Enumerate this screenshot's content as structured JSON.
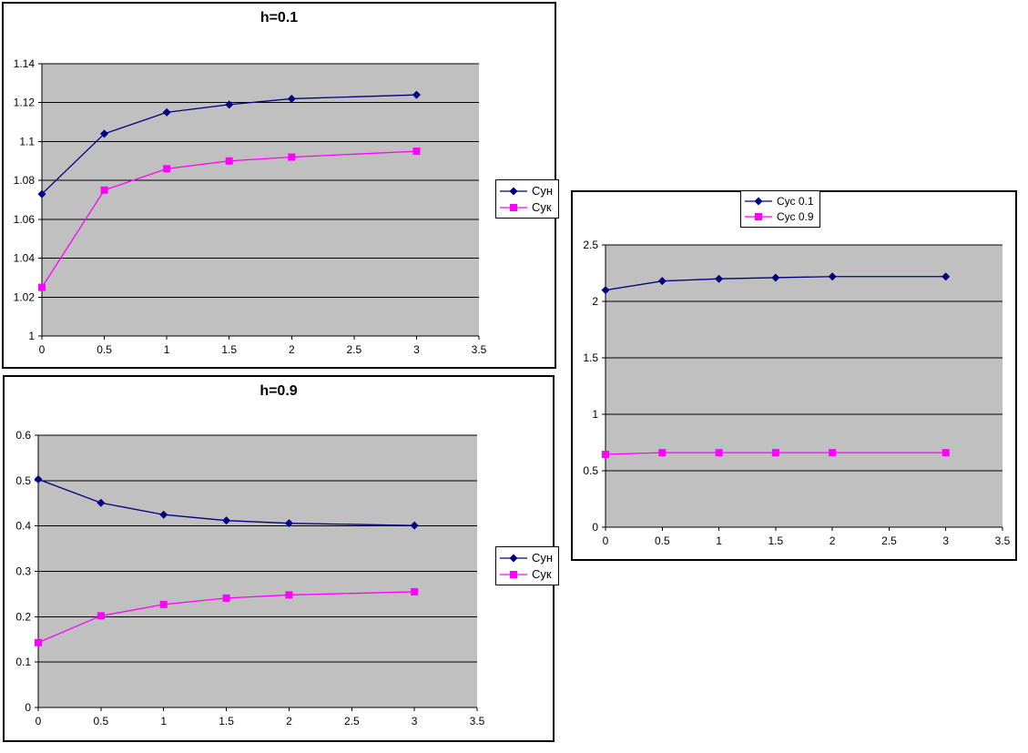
{
  "page": {
    "background_color": "#FFFFFF",
    "plot_background_color": "#C0C0C0",
    "gridline_color": "#000000",
    "text_color": "#000000"
  },
  "chart_data": [
    {
      "key": "h01",
      "type": "line",
      "title": "h=0.1",
      "x": [
        0,
        0.5,
        1,
        1.5,
        2,
        3
      ],
      "series": [
        {
          "name": "Сун",
          "color": "#000080",
          "marker": "diamond",
          "values": [
            1.073,
            1.104,
            1.115,
            1.119,
            1.122,
            1.124
          ]
        },
        {
          "name": "Сук",
          "color": "#FF00FF",
          "marker": "square",
          "values": [
            1.025,
            1.075,
            1.086,
            1.09,
            1.092,
            1.095
          ]
        }
      ],
      "xlim": [
        0,
        3.5
      ],
      "ylim": [
        1,
        1.14
      ],
      "xtick_values": [
        0,
        0.5,
        1,
        1.5,
        2,
        2.5,
        3,
        3.5
      ],
      "xtick_labels": [
        "0",
        "0.5",
        "1",
        "1.5",
        "2",
        "2.5",
        "3",
        "3.5"
      ],
      "ytick_values": [
        1,
        1.02,
        1.04,
        1.06,
        1.08,
        1.1,
        1.12,
        1.14
      ],
      "ytick_labels": [
        "1",
        "1.02",
        "1.04",
        "1.06",
        "1.08",
        "1.1",
        "1.12",
        "1.14"
      ],
      "grid": "horizontal",
      "legend_position": "right",
      "plot_bg": "#C0C0C0"
    },
    {
      "key": "h09",
      "type": "line",
      "title": "h=0.9",
      "x": [
        0,
        0.5,
        1,
        1.5,
        2,
        3
      ],
      "series": [
        {
          "name": "Сун",
          "color": "#000080",
          "marker": "diamond",
          "values": [
            0.503,
            0.451,
            0.425,
            0.412,
            0.406,
            0.401
          ]
        },
        {
          "name": "Сук",
          "color": "#FF00FF",
          "marker": "square",
          "values": [
            0.143,
            0.202,
            0.227,
            0.241,
            0.248,
            0.255
          ]
        }
      ],
      "xlim": [
        0,
        3.5
      ],
      "ylim": [
        0,
        0.6
      ],
      "xtick_values": [
        0,
        0.5,
        1,
        1.5,
        2,
        2.5,
        3,
        3.5
      ],
      "xtick_labels": [
        "0",
        "0.5",
        "1",
        "1.5",
        "2",
        "2.5",
        "3",
        "3.5"
      ],
      "ytick_values": [
        0,
        0.1,
        0.2,
        0.3,
        0.4,
        0.5,
        0.6
      ],
      "ytick_labels": [
        "0",
        "0.1",
        "0.2",
        "0.3",
        "0.4",
        "0.5",
        "0.6"
      ],
      "grid": "horizontal",
      "legend_position": "right",
      "plot_bg": "#C0C0C0"
    },
    {
      "key": "sus",
      "type": "line",
      "title": "",
      "x": [
        0,
        0.5,
        1,
        1.5,
        2,
        3
      ],
      "series": [
        {
          "name": "Сус 0.1",
          "color": "#000080",
          "marker": "diamond",
          "values": [
            2.1,
            2.18,
            2.2,
            2.21,
            2.22,
            2.22
          ]
        },
        {
          "name": "Сус 0.9",
          "color": "#FF00FF",
          "marker": "square",
          "values": [
            0.645,
            0.66,
            0.66,
            0.66,
            0.66,
            0.66
          ]
        }
      ],
      "xlim": [
        0,
        3.5
      ],
      "ylim": [
        0,
        2.5
      ],
      "xtick_values": [
        0,
        0.5,
        1,
        1.5,
        2,
        2.5,
        3,
        3.5
      ],
      "xtick_labels": [
        "0",
        "0.5",
        "1",
        "1.5",
        "2",
        "2.5",
        "3",
        "3.5"
      ],
      "ytick_values": [
        0,
        0.5,
        1,
        1.5,
        2,
        2.5
      ],
      "ytick_labels": [
        "0",
        "0.5",
        "1",
        "1.5",
        "2",
        "2.5"
      ],
      "grid": "horizontal",
      "legend_position": "top",
      "plot_bg": "#C0C0C0"
    }
  ]
}
